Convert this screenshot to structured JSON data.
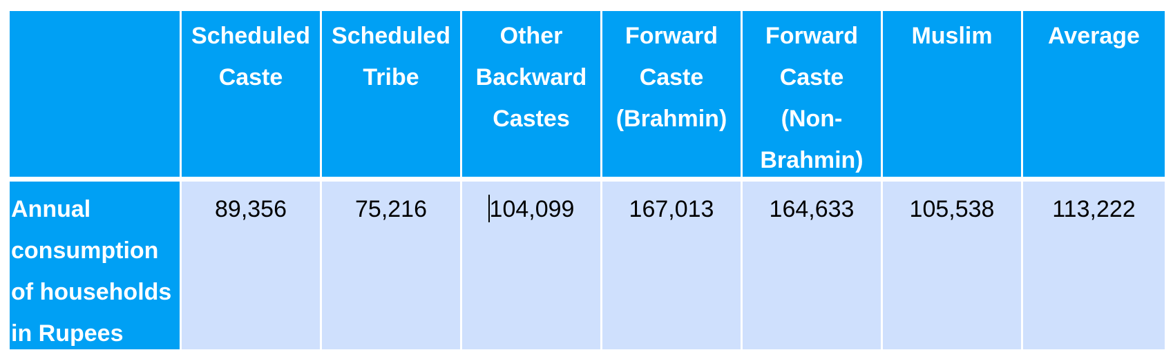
{
  "table": {
    "headers": [
      "",
      "Scheduled Caste",
      "Scheduled Tribe",
      "Other Backward Castes",
      "Forward Caste (Brahmin)",
      "Forward Caste (Non-Brahmin)",
      "Muslim",
      "Average"
    ],
    "row_label": "Annual consumption of households in Rupees",
    "values": [
      "89,356",
      "75,216",
      "104,099",
      "167,013",
      "164,633",
      "105,538",
      "113,222"
    ]
  },
  "colors": {
    "header_bg": "#00a0f4",
    "value_bg": "#cfe0fd",
    "header_text": "#ffffff"
  }
}
